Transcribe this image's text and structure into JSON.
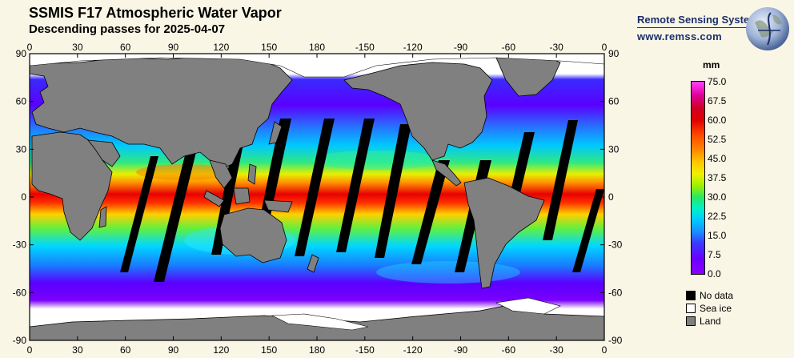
{
  "header": {
    "title": "SSMIS F17 Atmospheric Water Vapor",
    "subtitle": "Descending passes for 2025-04-07"
  },
  "brand": {
    "name": "Remote Sensing Systems",
    "url": "www.remss.com"
  },
  "map": {
    "lon_ticks": [
      "0",
      "30",
      "60",
      "90",
      "120",
      "150",
      "180",
      "-150",
      "-120",
      "-90",
      "-60",
      "-30",
      "0"
    ],
    "lat_ticks": [
      "90",
      "60",
      "30",
      "0",
      "-30",
      "-60",
      "-90"
    ],
    "colors": {
      "land": "#808080",
      "no_data": "#000000",
      "sea_ice": "#ffffff"
    }
  },
  "colorbar": {
    "unit": "mm",
    "labels": [
      "75.0",
      "67.5",
      "60.0",
      "52.5",
      "45.0",
      "37.5",
      "30.0",
      "22.5",
      "15.0",
      "7.5",
      "0.0"
    ]
  },
  "legend": [
    {
      "label": "No data",
      "color": "#000000"
    },
    {
      "label": "Sea ice",
      "color": "#ffffff"
    },
    {
      "label": "Land",
      "color": "#808080"
    }
  ]
}
